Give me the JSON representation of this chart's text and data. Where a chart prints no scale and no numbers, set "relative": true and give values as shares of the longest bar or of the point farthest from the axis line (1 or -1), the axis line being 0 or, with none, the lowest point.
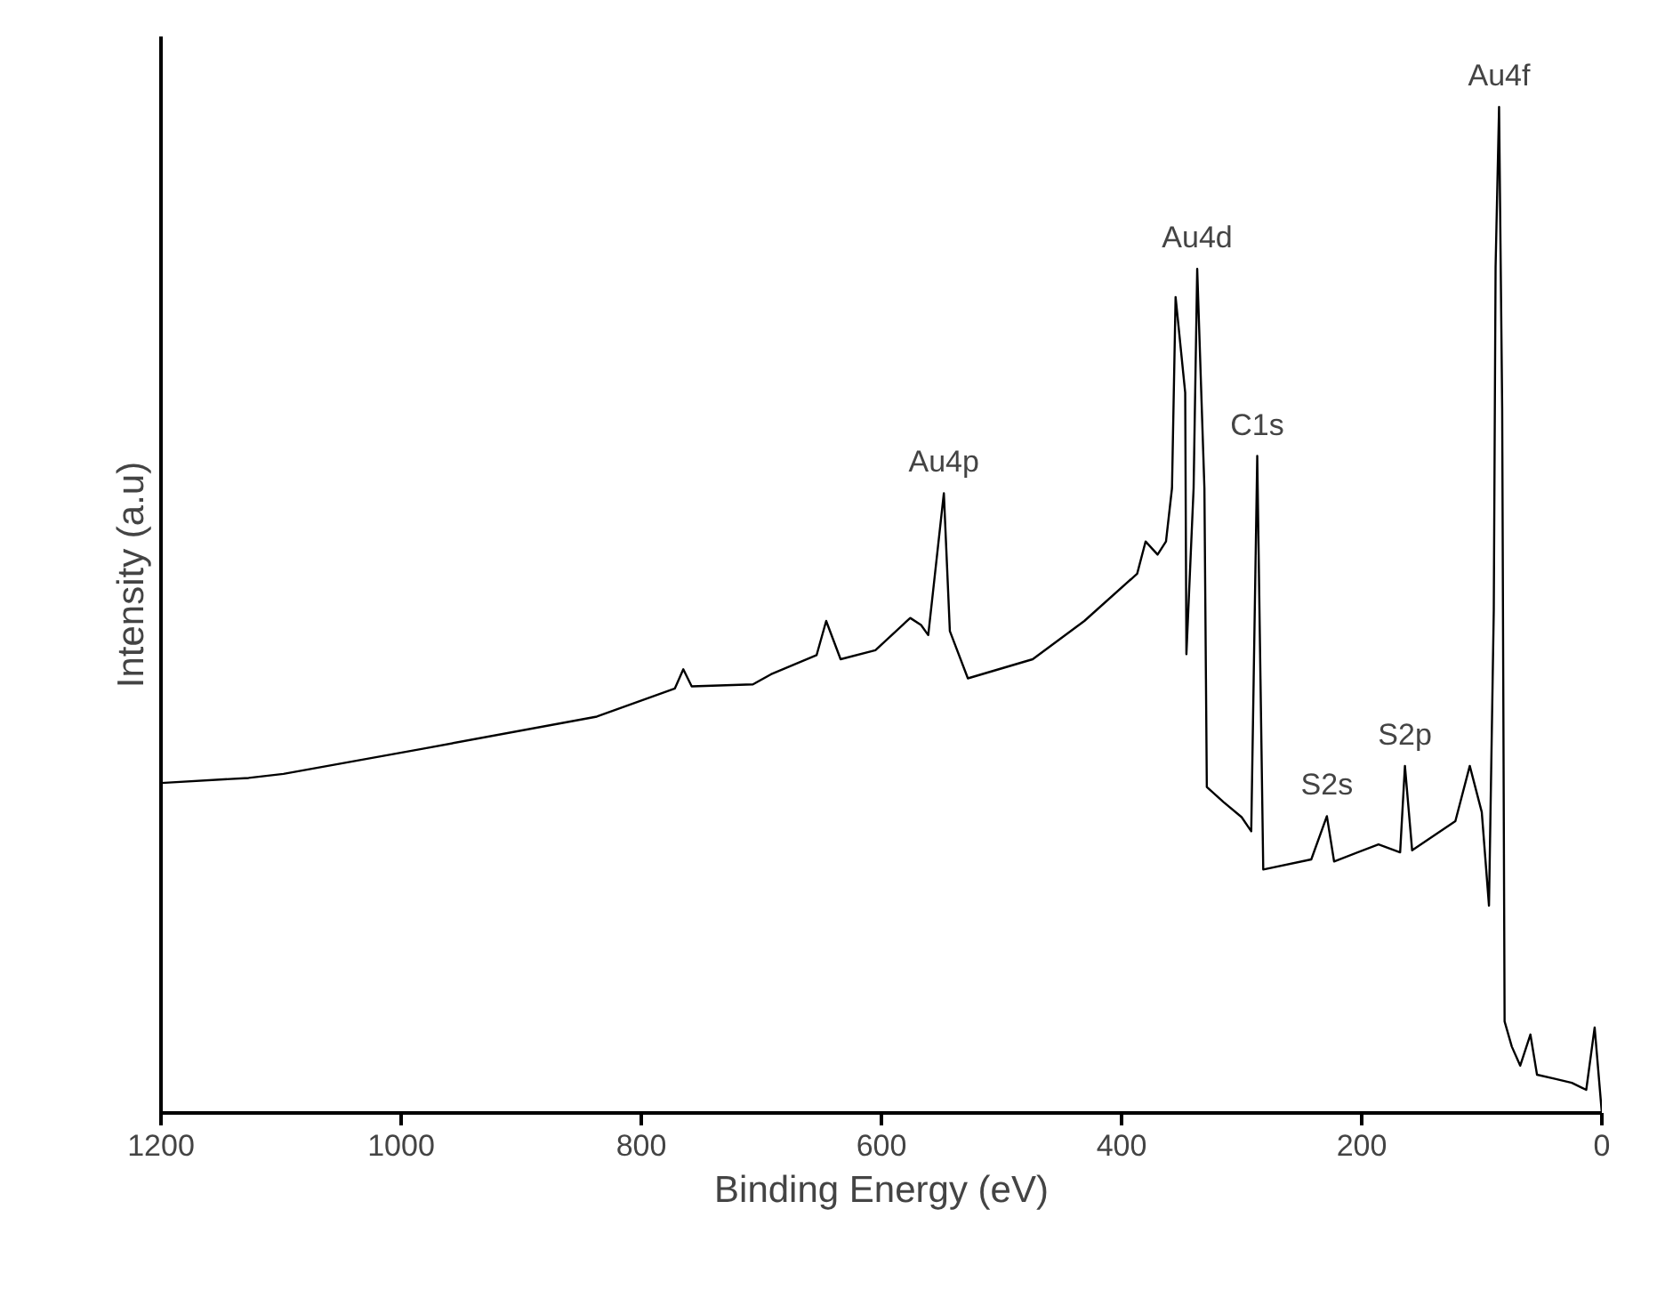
{
  "chart_data": {
    "type": "line",
    "relative": true,
    "xlabel": "Binding Energy (eV)",
    "ylabel": "Intensity (a.u)",
    "xlim": [
      1200,
      0
    ],
    "xticks": [
      1200,
      1000,
      800,
      600,
      400,
      200,
      0
    ],
    "grid": false,
    "marker": "none",
    "line_style": "solid",
    "series": [
      {
        "color": "#000000",
        "x": [
          1200,
          1127,
          1098,
          982,
          837,
          772,
          765,
          758,
          707,
          692,
          654,
          646,
          634,
          605,
          576,
          567,
          561,
          548,
          543,
          528,
          474,
          431,
          387,
          380,
          370,
          363,
          358,
          355,
          347,
          346,
          340,
          337,
          331,
          329,
          315,
          300,
          292,
          287,
          282,
          242,
          229,
          223,
          186,
          168,
          164,
          158,
          122,
          110,
          100,
          94,
          90,
          88.5,
          85.6,
          83,
          81,
          75,
          68,
          59.5,
          54,
          39,
          25,
          13,
          6,
          0
        ],
        "values": [
          0.328,
          0.333,
          0.337,
          0.362,
          0.394,
          0.422,
          0.441,
          0.424,
          0.426,
          0.436,
          0.455,
          0.489,
          0.451,
          0.46,
          0.492,
          0.485,
          0.475,
          0.616,
          0.479,
          0.432,
          0.451,
          0.489,
          0.536,
          0.568,
          0.555,
          0.568,
          0.621,
          0.811,
          0.716,
          0.456,
          0.621,
          0.839,
          0.621,
          0.324,
          0.309,
          0.294,
          0.28,
          0.653,
          0.242,
          0.252,
          0.295,
          0.25,
          0.267,
          0.259,
          0.345,
          0.261,
          0.29,
          0.345,
          0.299,
          0.206,
          0.5,
          0.841,
          1.0,
          0.7,
          0.091,
          0.066,
          0.047,
          0.078,
          0.038,
          0.034,
          0.03,
          0.023,
          0.085,
          0.0
        ]
      }
    ],
    "annotations": [
      {
        "text": "Au4p",
        "x": 548,
        "y": 0.616
      },
      {
        "text": "Au4d",
        "x": 337,
        "y": 0.839
      },
      {
        "text": "C1s",
        "x": 287,
        "y": 0.653
      },
      {
        "text": "S2s",
        "x": 229,
        "y": 0.295
      },
      {
        "text": "S2p",
        "x": 164,
        "y": 0.345
      },
      {
        "text": "Au4f",
        "x": 85.6,
        "y": 1.0
      }
    ]
  }
}
